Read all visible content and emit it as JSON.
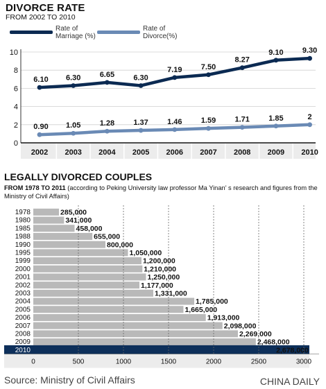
{
  "header1": {
    "title": "DIVORCE RATE",
    "subtitle": "FROM 2002 TO 2010"
  },
  "legend": {
    "marriage": "Rate of\nMarriage (%)",
    "divorce": "Rate of\nDivorce(%)"
  },
  "colors": {
    "marriage": "#0b2a52",
    "divorce": "#6a8ab5",
    "bar": "#b9b9b9",
    "bar_highlight": "#0d2f5a",
    "divider": "#666666"
  },
  "header2": {
    "title": "LEGALLY DIVORCED COUPLES",
    "subtitle_bold": "FROM 1978 TO 2011",
    "subtitle_rest": " (according to Peking University law professor Ma Yinan’ s research and figures from the Ministry of Civil Affairs)"
  },
  "footer": {
    "source": "Source: Ministry of Civil Affairs",
    "credit": "CHINA DAILY"
  },
  "chart_data": [
    {
      "type": "line",
      "x": [
        "2002",
        "2003",
        "2004",
        "2005",
        "2006",
        "2007",
        "2008",
        "2009",
        "2010"
      ],
      "series": [
        {
          "name": "Rate of Marriage (%)",
          "values": [
            6.1,
            6.3,
            6.65,
            6.3,
            7.19,
            7.5,
            8.27,
            9.1,
            9.3
          ],
          "labels": [
            "6.10",
            "6.30",
            "6.65",
            "6.30",
            "7.19",
            "7.50",
            "8.27",
            "9.10",
            "9.30"
          ]
        },
        {
          "name": "Rate of Divorce(%)",
          "values": [
            0.9,
            1.05,
            1.28,
            1.37,
            1.46,
            1.59,
            1.71,
            1.85,
            2
          ],
          "labels": [
            "0.90",
            "1.05",
            "1.28",
            "1.37",
            "1.46",
            "1.59",
            "1.71",
            "1.85",
            "2"
          ]
        }
      ],
      "ylim": [
        0,
        10
      ],
      "yticks": [
        0,
        2,
        4,
        6,
        8,
        10
      ],
      "grid": false
    },
    {
      "type": "bar",
      "orientation": "horizontal",
      "categories": [
        "1978",
        "1980",
        "1985",
        "1988",
        "1990",
        "1995",
        "1999",
        "2000",
        "2001",
        "2002",
        "2003",
        "2004",
        "2005",
        "2006",
        "2007",
        "2008",
        "2009",
        "2010"
      ],
      "values": [
        285000,
        341000,
        458000,
        655000,
        800000,
        1050000,
        1200000,
        1210000,
        1250000,
        1177000,
        1331000,
        1785000,
        1665000,
        1913000,
        2098000,
        2269000,
        2468000,
        2678000
      ],
      "labels": [
        "285,000",
        "341,000",
        "458,000",
        "655,000",
        "800,000",
        "1,050,000",
        "1,200,000",
        "1,210,000",
        "1,250,000",
        "1,177,000",
        "1,331,000",
        "1,785,000",
        "1,665,000",
        "1,913,000",
        "2,098,000",
        "2,269,000",
        "2,468,000",
        "2,678,000"
      ],
      "xticks": [
        0,
        500,
        1000,
        1500,
        2000,
        2500,
        3000
      ],
      "xtick_unit": "thousands",
      "xlim": [
        0,
        3000
      ],
      "highlight": "2010"
    }
  ]
}
